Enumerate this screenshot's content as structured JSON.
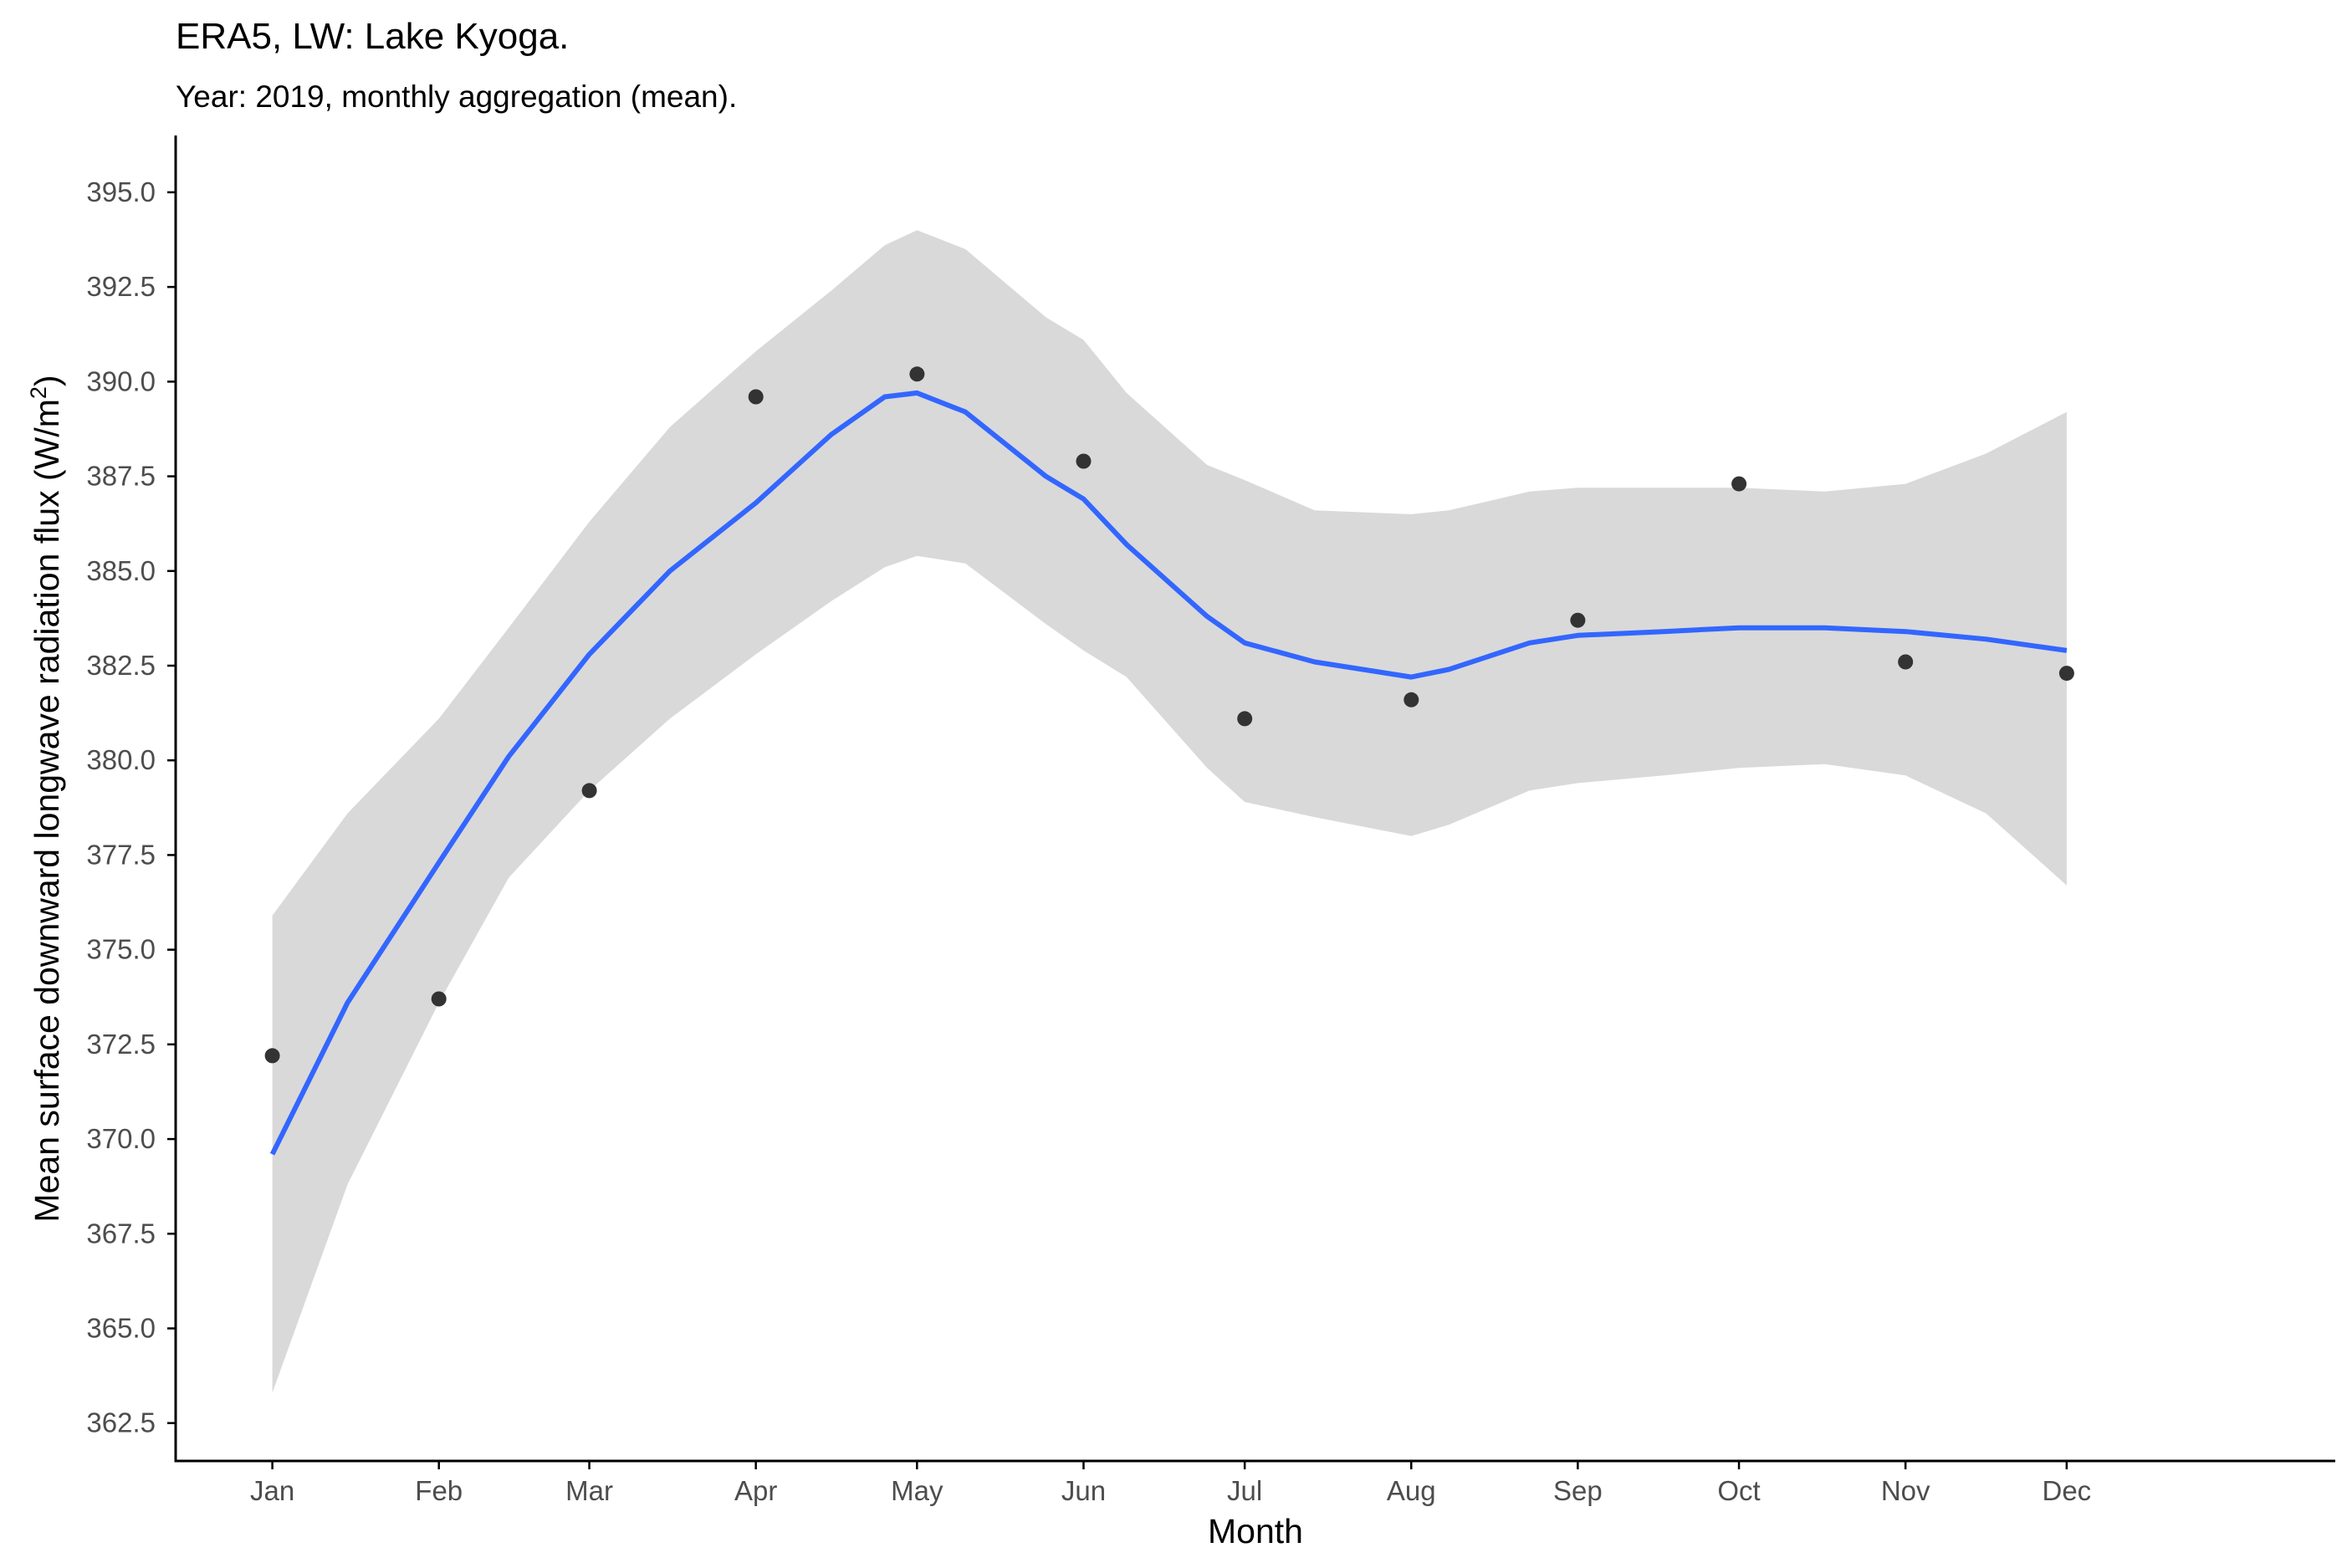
{
  "chart_data": {
    "type": "scatter",
    "title": "ERA5, LW: Lake Kyoga.",
    "subtitle": "Year: 2019, monthly aggregation (mean).",
    "xlabel": "Month",
    "ylabel_prefix": "Mean surface downward longwave radiation flux (W/m",
    "ylabel_superscript": "2",
    "ylabel_suffix": ")",
    "categories": [
      "Jan",
      "Feb",
      "Mar",
      "Apr",
      "May",
      "Jun",
      "Jul",
      "Aug",
      "Sep",
      "Oct",
      "Nov",
      "Dec"
    ],
    "x_day_of_year": [
      1,
      32,
      60,
      91,
      121,
      152,
      182,
      213,
      244,
      274,
      305,
      335
    ],
    "xlim": [
      -17,
      385
    ],
    "ylim": [
      361.5,
      396.5
    ],
    "yticks": [
      "362.5",
      "365.0",
      "367.5",
      "370.0",
      "372.5",
      "375.0",
      "377.5",
      "380.0",
      "382.5",
      "385.0",
      "387.5",
      "390.0",
      "392.5",
      "395.0"
    ],
    "points": {
      "x": [
        1,
        32,
        60,
        91,
        121,
        152,
        182,
        213,
        244,
        274,
        305,
        335
      ],
      "y": [
        372.2,
        373.7,
        379.2,
        389.6,
        390.2,
        387.9,
        381.1,
        381.6,
        383.7,
        387.3,
        382.6,
        382.3
      ]
    },
    "smooth": {
      "method": "loess",
      "x": [
        1,
        15,
        32,
        45,
        60,
        75,
        91,
        105,
        115,
        121,
        130,
        145,
        152,
        160,
        175,
        182,
        195,
        213,
        220,
        235,
        244,
        260,
        274,
        290,
        305,
        320,
        335
      ],
      "y": [
        369.6,
        373.6,
        377.3,
        380.1,
        382.8,
        385.0,
        386.8,
        388.6,
        389.6,
        389.7,
        389.2,
        387.5,
        386.9,
        385.7,
        383.8,
        383.1,
        382.6,
        382.2,
        382.4,
        383.1,
        383.3,
        383.4,
        383.5,
        383.5,
        383.4,
        383.2,
        382.9
      ],
      "lower": [
        363.3,
        368.8,
        373.6,
        376.9,
        379.2,
        381.1,
        382.8,
        384.2,
        385.1,
        385.4,
        385.2,
        383.6,
        382.9,
        382.2,
        379.8,
        378.9,
        378.5,
        378.0,
        378.3,
        379.2,
        379.4,
        379.6,
        379.8,
        379.9,
        379.6,
        378.6,
        376.7
      ],
      "upper": [
        375.9,
        378.6,
        381.1,
        383.5,
        386.3,
        388.8,
        390.8,
        392.4,
        393.6,
        394.0,
        393.5,
        391.7,
        391.1,
        389.7,
        387.8,
        387.4,
        386.6,
        386.5,
        386.6,
        387.1,
        387.2,
        387.2,
        387.2,
        387.1,
        387.3,
        388.1,
        389.2
      ]
    },
    "colors": {
      "smooth_line": "#3366ff",
      "ribbon": "#d9d9d9",
      "points": "#333333",
      "axis": "#000000"
    },
    "grid": false,
    "legend": "none"
  }
}
